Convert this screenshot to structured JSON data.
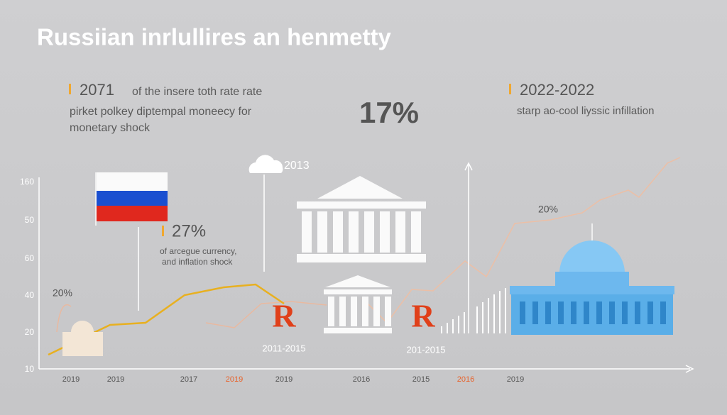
{
  "title": "Russiian inrlullires an henmetty",
  "left_callout": {
    "heading": "2071",
    "line1": "of the insere toth rate rate",
    "line2": "pirket polkey diptempal moneecy for",
    "line3": "monetary shock"
  },
  "center_figure": "17%",
  "right_callout": {
    "heading": "2022-2022",
    "text": "starp ao-cool liyssic infillation"
  },
  "cloud_label": "2013",
  "mid_callout": {
    "heading": "27%",
    "line1": "of arcegue currency,",
    "line2": "and inflation shock"
  },
  "left_percent": "20%",
  "right_percent": "20%",
  "badges": [
    {
      "letter": "R",
      "caption": "2011-2015"
    },
    {
      "letter": "R",
      "caption": "201-2015"
    }
  ],
  "y_labels": [
    "160",
    "50",
    "60",
    "40",
    "20",
    "10"
  ],
  "x_labels": [
    {
      "text": "2019",
      "color": "#555555"
    },
    {
      "text": "2019",
      "color": "#555555"
    },
    {
      "text": "2017",
      "color": "#555555"
    },
    {
      "text": "2019",
      "color": "#e8622a"
    },
    {
      "text": "2019",
      "color": "#555555"
    },
    {
      "text": "2016",
      "color": "#555555"
    },
    {
      "text": "2015",
      "color": "#555555"
    },
    {
      "text": "2016",
      "color": "#e8622a"
    },
    {
      "text": "2019",
      "color": "#555555"
    }
  ]
}
